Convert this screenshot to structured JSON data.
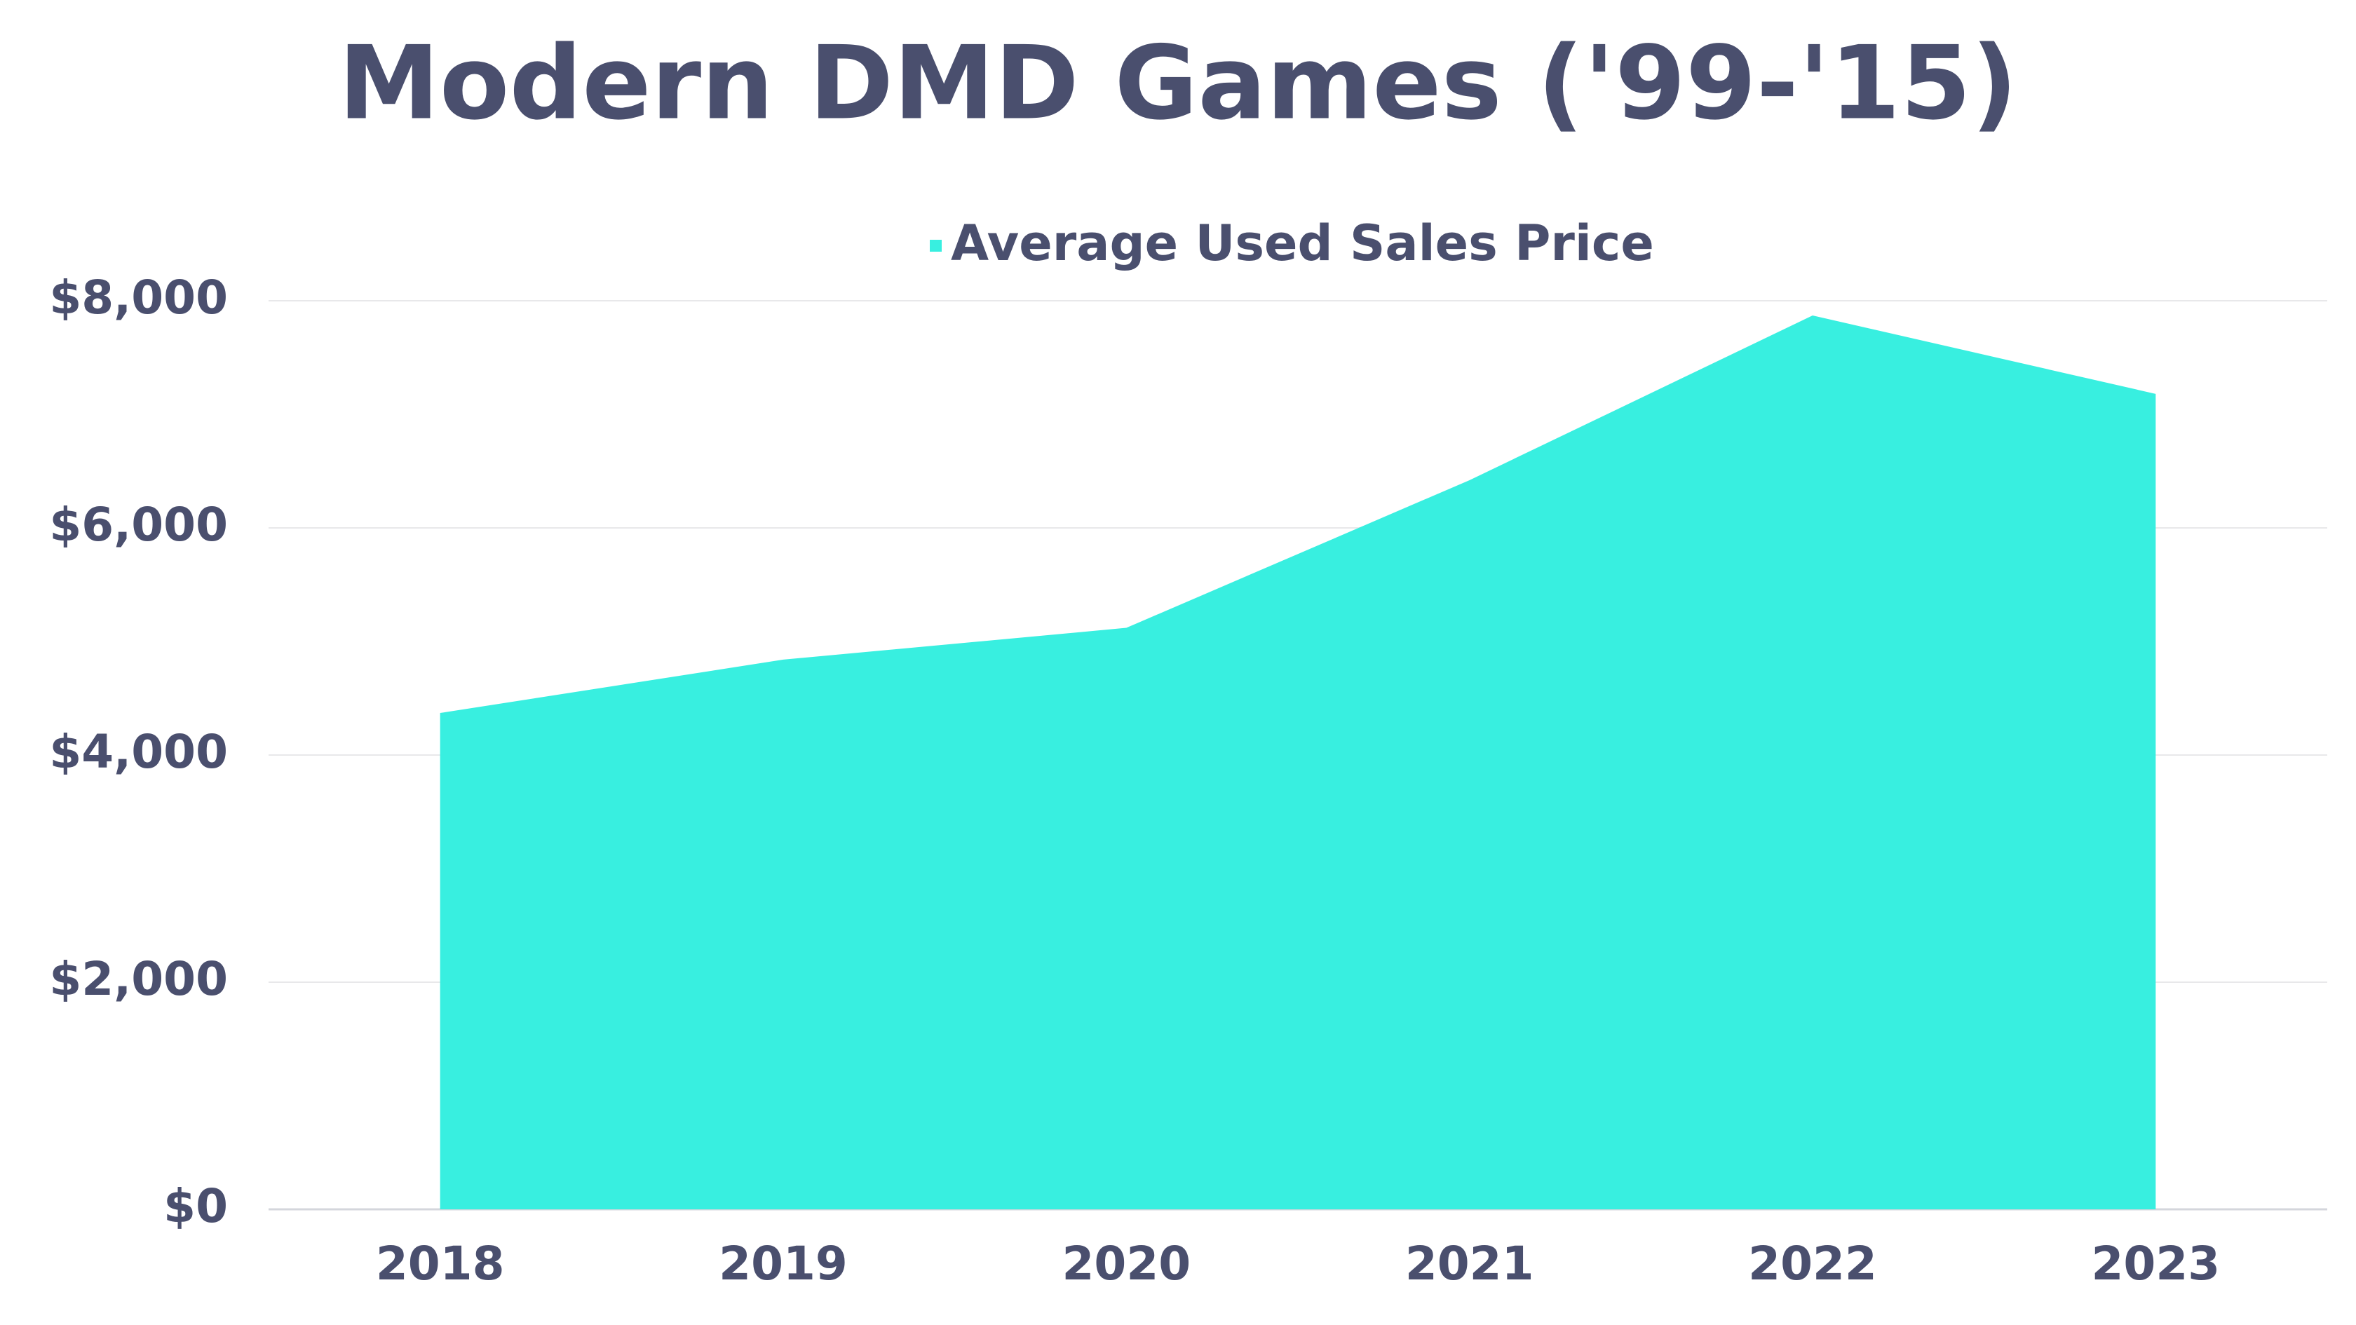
{
  "chart_data": {
    "type": "area",
    "title": "Modern DMD Games ('99-'15)",
    "categories": [
      "2018",
      "2019",
      "2020",
      "2021",
      "2022",
      "2023"
    ],
    "series": [
      {
        "name": "Average Used Sales Price",
        "color": "#38efe0",
        "values": [
          4370,
          4840,
          5120,
          6420,
          7870,
          7180
        ]
      }
    ],
    "ylim": [
      0,
      8000
    ],
    "yticks": [
      {
        "value": 0,
        "label": "$0"
      },
      {
        "value": 2000,
        "label": "$2,000"
      },
      {
        "value": 4000,
        "label": "$4,000"
      },
      {
        "value": 6000,
        "label": "$6,000"
      },
      {
        "value": 8000,
        "label": "$8,000"
      }
    ],
    "grid": true,
    "legend": "top"
  }
}
